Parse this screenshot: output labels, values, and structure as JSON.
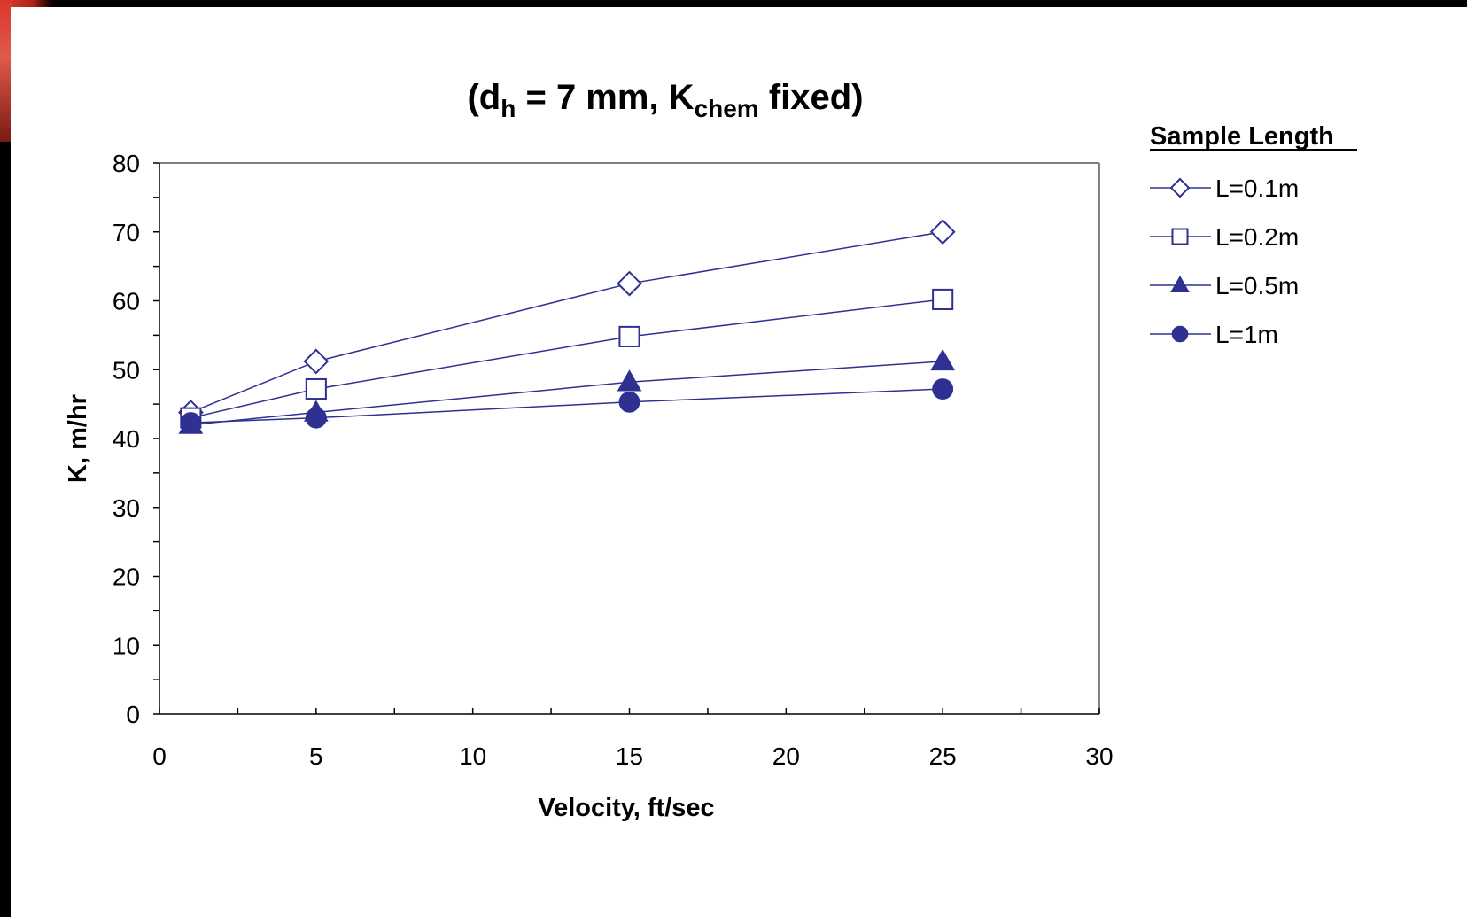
{
  "colors": {
    "series": "#2e3192",
    "axis": "#000000",
    "frame": "#808080",
    "background": "#ffffff"
  },
  "chart_data": {
    "type": "line",
    "title": {
      "prefix": "(d",
      "sub1": "h",
      "mid": " = 7 mm, K",
      "sub2": "chem",
      "suffix": " fixed)"
    },
    "xlabel": "Velocity, ft/sec",
    "ylabel": "K, m/hr",
    "xlim": [
      0,
      30
    ],
    "ylim": [
      0,
      80
    ],
    "xticks": [
      0,
      5,
      10,
      15,
      20,
      25,
      30
    ],
    "yticks": [
      0,
      10,
      20,
      30,
      40,
      50,
      60,
      70,
      80
    ],
    "x": [
      1,
      5,
      15,
      25
    ],
    "grid": false,
    "legend": {
      "title": "Sample Length",
      "position": "right"
    },
    "series": [
      {
        "name": "L=0.1m",
        "marker": "diamond-open",
        "values": [
          43.8,
          51.2,
          62.5,
          70.0
        ]
      },
      {
        "name": "L=0.2m",
        "marker": "square-open",
        "values": [
          43.0,
          47.2,
          54.8,
          60.2
        ]
      },
      {
        "name": "L=0.5m",
        "marker": "triangle-filled",
        "values": [
          42.0,
          43.8,
          48.2,
          51.2
        ]
      },
      {
        "name": "L=1m",
        "marker": "circle-filled",
        "values": [
          42.3,
          43.0,
          45.3,
          47.2
        ]
      }
    ]
  }
}
